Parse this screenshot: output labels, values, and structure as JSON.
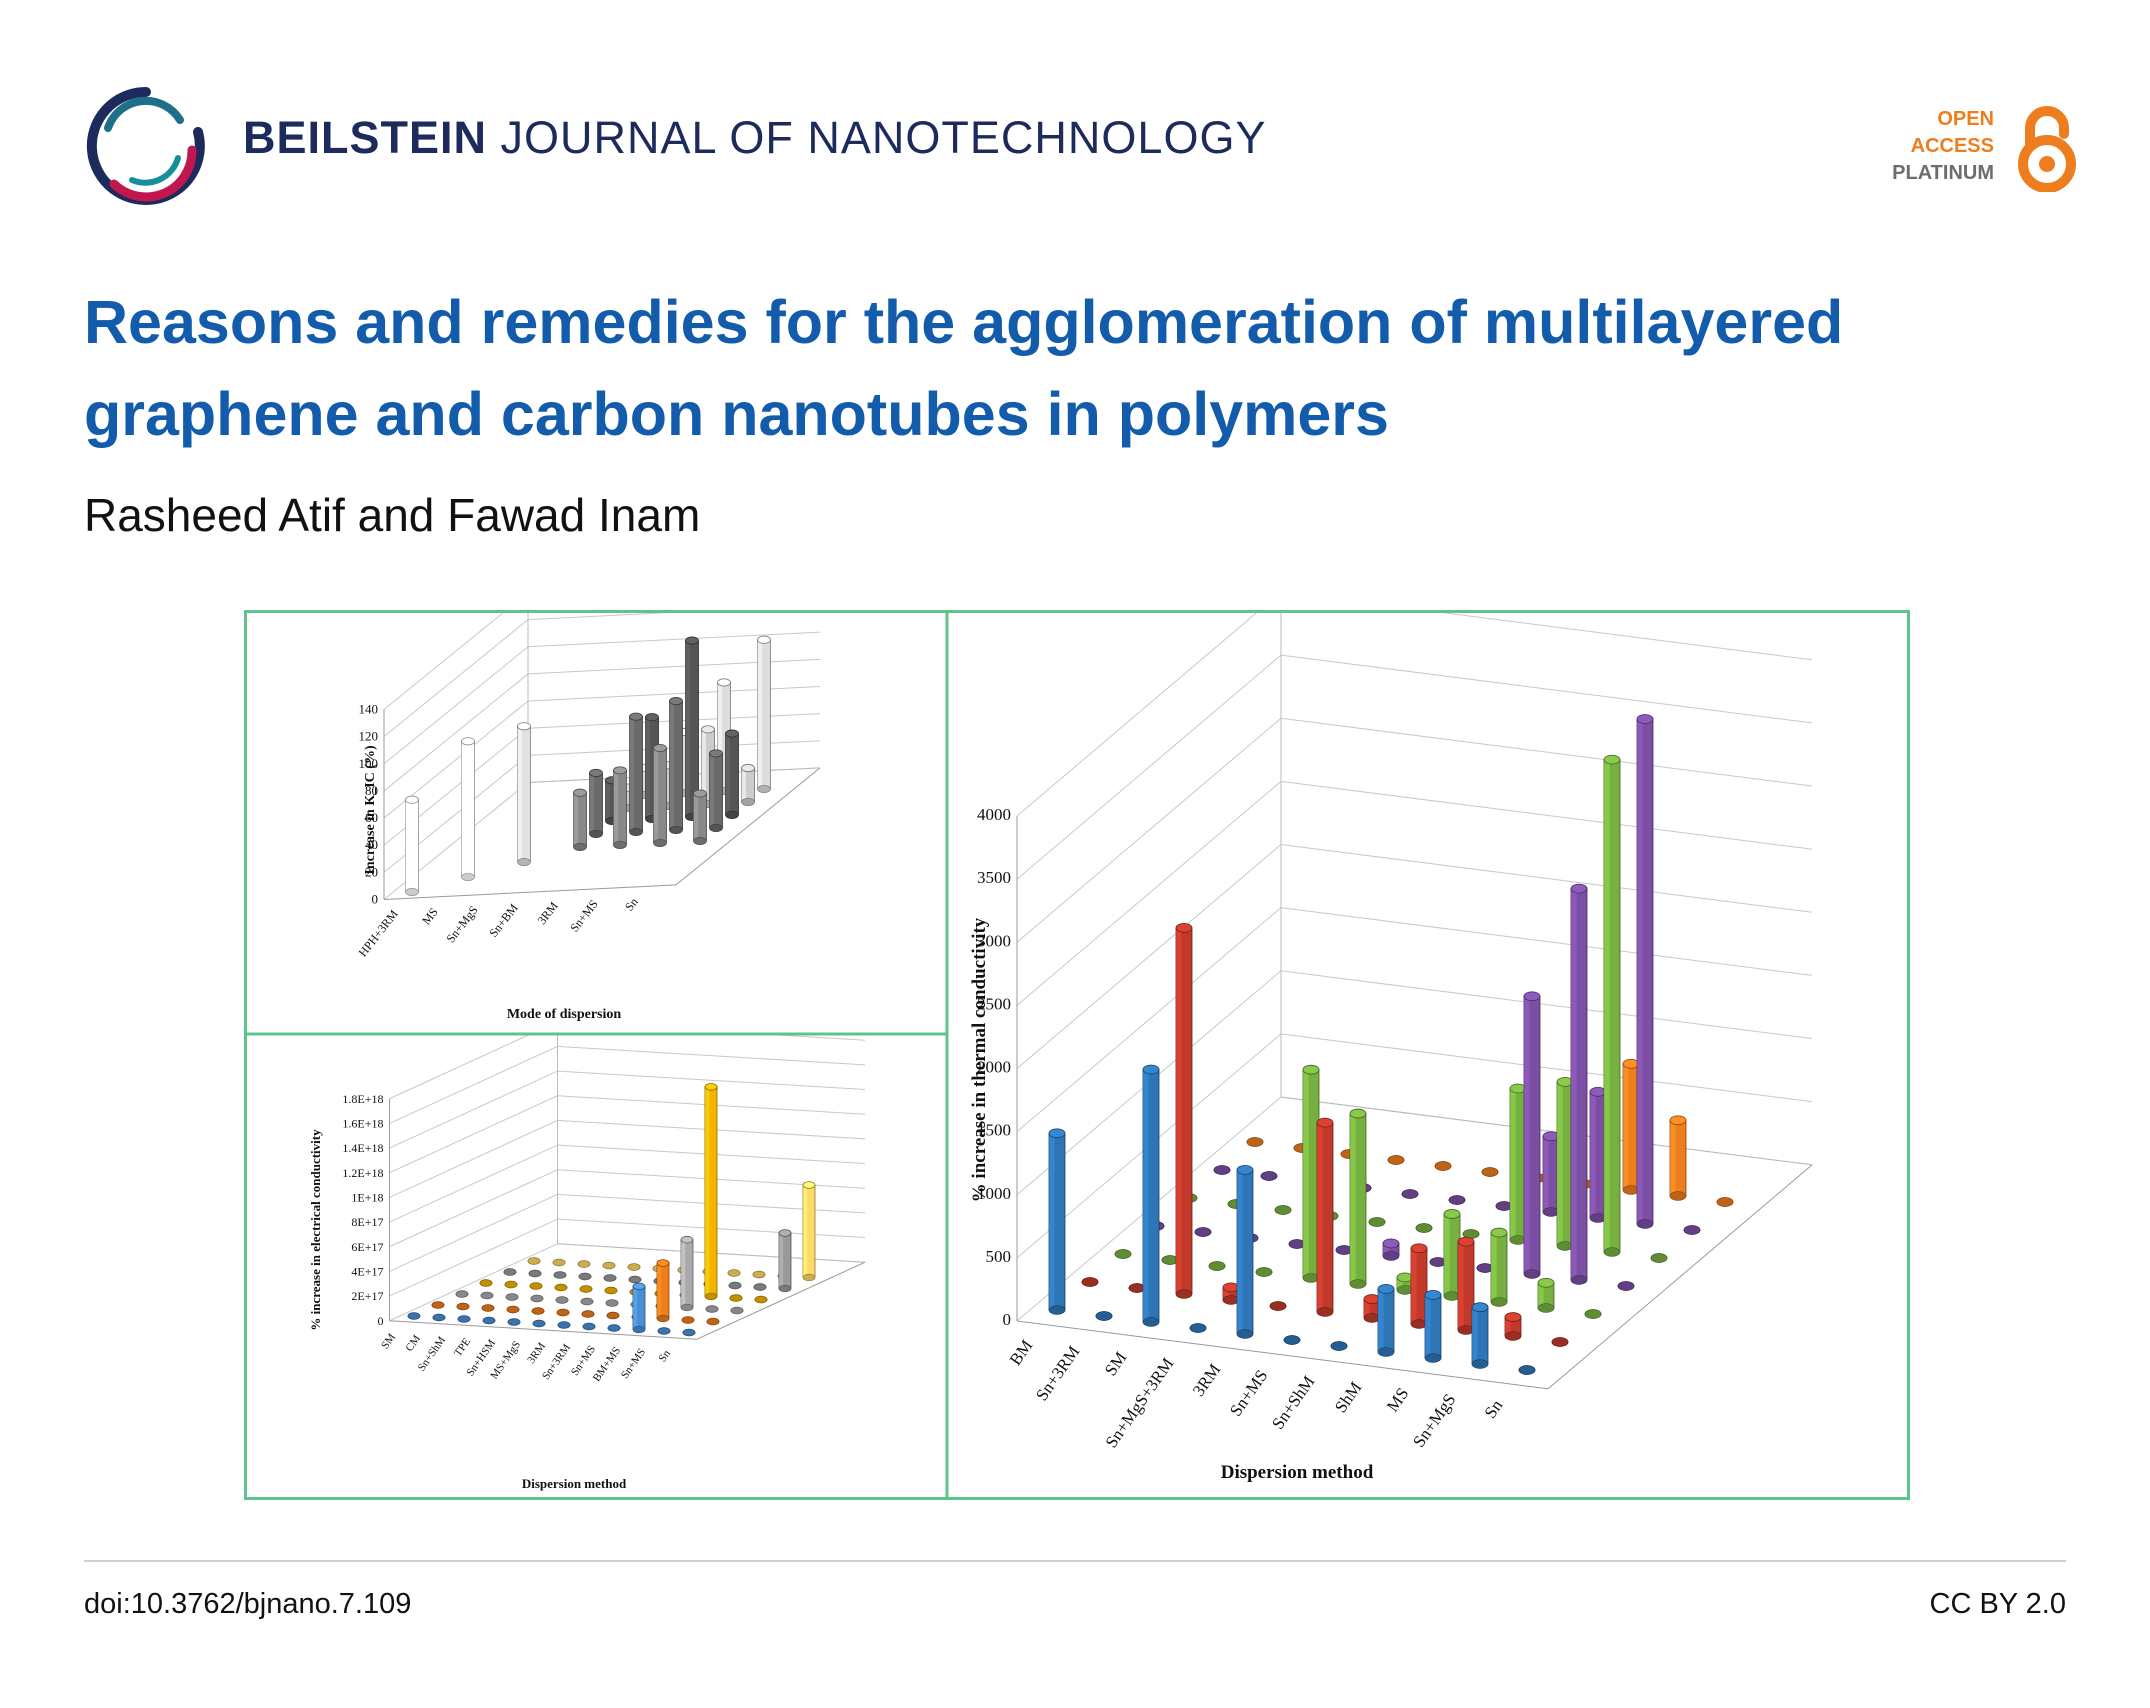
{
  "header": {
    "journal_bold": "BEILSTEIN",
    "journal_rest": "JOURNAL OF NANOTECHNOLOGY",
    "badge": {
      "line1": "OPEN",
      "line2": "ACCESS",
      "line3": "PLATINUM"
    },
    "logo_icon": "beilstein-ring-logo",
    "lock_icon": "open-lock-icon",
    "colors": {
      "journal": "#1d2a5c",
      "title": "#135bab",
      "badge_orange": "#ee7d1f",
      "badge_gray": "#6d6d6d",
      "figure_border": "#5fc48b"
    }
  },
  "article": {
    "title": "Reasons and remedies for the agglomeration of multilayered graphene and carbon nanotubes in polymers",
    "authors": "Rasheed Atif and Fawad Inam"
  },
  "footer": {
    "doi": "doi:10.3762/bjnano.7.109",
    "license": "CC BY 2.0"
  },
  "chart_data": [
    {
      "type": "bar",
      "title": "",
      "xlabel": "Mode of dispersion",
      "ylabel": "Increase in K_IC (%)",
      "ylim": [
        0,
        140
      ],
      "yticks": [
        0,
        20,
        40,
        60,
        80,
        100,
        120,
        140
      ],
      "categories": [
        "HPH+3RM",
        "MS",
        "Sn+MgS",
        "Sn+BM",
        "3RM",
        "Sn+MS",
        "Sn"
      ],
      "series": [
        {
          "values": [
            68,
            null,
            null,
            null,
            null,
            null,
            null
          ],
          "color": "#ffffff"
        },
        {
          "values": [
            null,
            100,
            null,
            null,
            null,
            null,
            null
          ],
          "color": "#ffffff"
        },
        {
          "values": [
            null,
            null,
            100,
            null,
            null,
            null,
            null
          ],
          "color": "#e2e2e2"
        },
        {
          "values": [
            null,
            null,
            null,
            40,
            55,
            70,
            35
          ],
          "color": "#888888"
        },
        {
          "values": [
            null,
            null,
            null,
            45,
            85,
            95,
            55
          ],
          "color": "#6a6a6a"
        },
        {
          "values": [
            null,
            null,
            null,
            30,
            75,
            130,
            60
          ],
          "color": "#555555"
        },
        {
          "values": [
            null,
            null,
            null,
            15,
            30,
            55,
            25
          ],
          "color": "#cccccc"
        },
        {
          "values": [
            null,
            null,
            null,
            20,
            45,
            80,
            110
          ],
          "color": "#dddddd"
        }
      ],
      "grid": true
    },
    {
      "type": "bar",
      "title": "",
      "xlabel": "Dispersion method",
      "ylabel": "% increase in electrical conductivity",
      "ylim": [
        0,
        1.8e+18
      ],
      "yticks": [
        "0",
        "2E+17",
        "4E+17",
        "6E+17",
        "8E+17",
        "1E+18",
        "1.2E+18",
        "1.4E+18",
        "1.6E+18",
        "1.8E+18"
      ],
      "categories": [
        "SM",
        "CM",
        "Sn+ShM",
        "TPE",
        "Sn+HSM",
        "MS+MgS",
        "3RM",
        "Sn+3RM",
        "Sn+MS",
        "BM+MS",
        "Sn+MS",
        "Sn"
      ],
      "series": [
        {
          "values": [
            0,
            0,
            0,
            0,
            0,
            0,
            0,
            0,
            0,
            3.5e+17,
            0,
            0
          ],
          "color": "#4a8fd6"
        },
        {
          "values": [
            0,
            0,
            0,
            0,
            0,
            0,
            0,
            0,
            0,
            4.5e+17,
            0,
            0
          ],
          "color": "#ef7d1a"
        },
        {
          "values": [
            0,
            0,
            0,
            0,
            0,
            0,
            0,
            0,
            0,
            5.5e+17,
            0,
            0
          ],
          "color": "#aaaaaa"
        },
        {
          "values": [
            0,
            0,
            0,
            0,
            0,
            0,
            0,
            0,
            0,
            1.7e+18,
            0,
            0
          ],
          "color": "#f4b400"
        },
        {
          "values": [
            0,
            0,
            0,
            0,
            0,
            0,
            0,
            0,
            0,
            0,
            0,
            4.5e+17
          ],
          "color": "#999999"
        },
        {
          "values": [
            0,
            0,
            0,
            0,
            0,
            0,
            0,
            0,
            0,
            0,
            0,
            7.5e+17
          ],
          "color": "#ffd966"
        }
      ],
      "grid": true
    },
    {
      "type": "bar",
      "title": "",
      "xlabel": "Dispersion method",
      "ylabel": "% increase in thermal conductivity",
      "ylim": [
        0,
        4000
      ],
      "yticks": [
        0,
        500,
        1000,
        1500,
        2000,
        2500,
        3000,
        3500,
        4000
      ],
      "categories": [
        "BM",
        "Sn+3RM",
        "SM",
        "Sn+MgS+3RM",
        "3RM",
        "Sn+MS",
        "Sn+ShM",
        "ShM",
        "MS",
        "Sn+MgS",
        "Sn"
      ],
      "series": [
        {
          "values": [
            1400,
            0,
            2000,
            0,
            1300,
            0,
            0,
            500,
            500,
            450,
            0
          ],
          "color": "#2e75b6"
        },
        {
          "values": [
            0,
            0,
            2900,
            100,
            0,
            1500,
            150,
            600,
            700,
            150,
            0
          ],
          "color": "#c0392b"
        },
        {
          "values": [
            0,
            0,
            0,
            0,
            1650,
            1350,
            100,
            650,
            550,
            200,
            0
          ],
          "color": "#77b041"
        },
        {
          "values": [
            0,
            0,
            0,
            0,
            0,
            100,
            0,
            0,
            2200,
            3100,
            0
          ],
          "color": "#7b4fa3"
        },
        {
          "values": [
            0,
            0,
            0,
            0,
            0,
            0,
            0,
            1200,
            1300,
            3900,
            0
          ],
          "color": "#77b041"
        },
        {
          "values": [
            0,
            0,
            0,
            0,
            0,
            0,
            0,
            600,
            1000,
            4000,
            0
          ],
          "color": "#7b4fa3"
        },
        {
          "values": [
            0,
            0,
            0,
            0,
            0,
            0,
            0,
            0,
            1000,
            600,
            0
          ],
          "color": "#ee7d1f"
        }
      ],
      "grid": true
    }
  ]
}
